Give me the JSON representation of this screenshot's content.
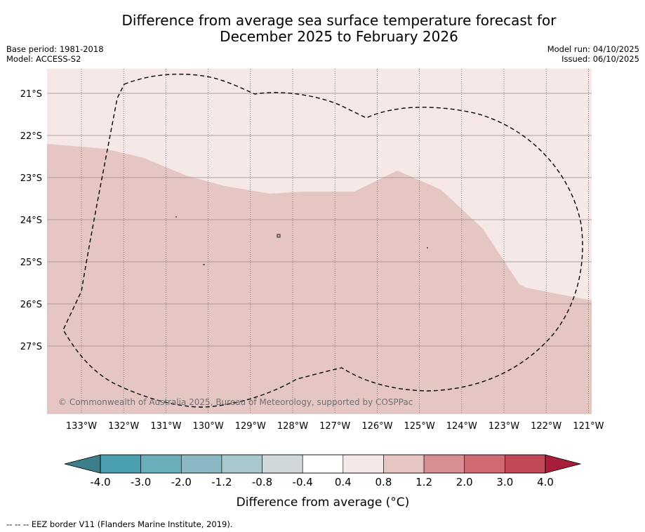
{
  "title": {
    "line1": "Difference from average sea surface temperature forecast for",
    "line2": "December 2025 to February 2026"
  },
  "meta": {
    "base_period": "Base period: 1981-2018",
    "model": "Model: ACCESS-S2",
    "model_run": "Model run: 04/10/2025",
    "issued": "Issued: 06/10/2025"
  },
  "map": {
    "lat_labels": [
      "21°S",
      "22°S",
      "23°S",
      "24°S",
      "25°S",
      "26°S",
      "27°S"
    ],
    "lon_labels": [
      "133°W",
      "132°W",
      "131°W",
      "130°W",
      "129°W",
      "128°W",
      "127°W",
      "126°W",
      "125°W",
      "124°W",
      "123°W",
      "122°W",
      "121°W"
    ],
    "copyright": "© Commonwealth of Australia 2025, Bureau of Meteorology, supported by COSPPac",
    "region_colors": {
      "light": "#f5e8e7",
      "medium": "#e6c6c2"
    }
  },
  "colorbar": {
    "tick_labels": [
      "-4.0",
      "-3.0",
      "-2.0",
      "-1.2",
      "-0.8",
      "-0.4",
      "0.4",
      "0.8",
      "1.2",
      "2.0",
      "3.0",
      "4.0"
    ],
    "colors": [
      "#4aa0b0",
      "#6aadbb",
      "#8ab9c4",
      "#a8c8cd",
      "#d1d8db",
      "#ffffff",
      "#f5e8e7",
      "#e6c6c2",
      "#d98e94",
      "#cd6a72",
      "#c14858"
    ],
    "extend_low_color": "#3c7f8a",
    "extend_high_color": "#a81e3a",
    "label": "Difference from average (°C)"
  },
  "footnote": "--  --  -- EEZ border V11 (Flanders Marine Institute, 2019)."
}
